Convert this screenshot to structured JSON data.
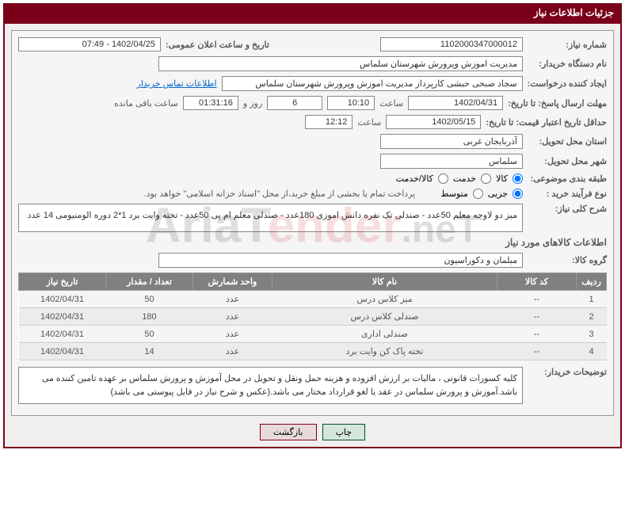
{
  "header": {
    "title": "جزئیات اطلاعات نیاز"
  },
  "labels": {
    "need_no": "شماره نیاز:",
    "announce_dt": "تاریخ و ساعت اعلان عمومی:",
    "buyer_org": "نام دستگاه خریدار:",
    "requester": "ایجاد کننده درخواست:",
    "contact_link": "اطلاعات تماس خریدار",
    "reply_deadline": "مهلت ارسال پاسخ: تا تاریخ:",
    "hour": "ساعت",
    "days_and": "روز و",
    "remaining": "ساعت باقی مانده",
    "price_valid": "حداقل تاریخ اعتبار قیمت: تا تاریخ:",
    "delivery_province": "استان محل تحویل:",
    "delivery_city": "شهر محل تحویل:",
    "category": "طبقه بندی موضوعی:",
    "purchase_type": "نوع فرآیند خرید :",
    "cat_goods": "کالا",
    "cat_service": "خدمت",
    "cat_both": "کالا/خدمت",
    "pt_minor": "جزیی",
    "pt_medium": "متوسط",
    "payment_note": "پرداخت تمام یا بخشی از مبلغ خرید،از محل \"اسناد خزانه اسلامی\" خواهد بود.",
    "summary": "شرح کلی نیاز:",
    "goods_info": "اطلاعات کالاهای مورد نیاز",
    "goods_group": "گروه کالا:",
    "buyer_desc": "توضیحات خریدار:"
  },
  "values": {
    "need_no": "1102000347000012",
    "announce_dt": "1402/04/25 - 07:49",
    "buyer_org": "مدیریت اموزش وپرورش شهرستان سلماس",
    "requester": "سجاد صبحی حبشی کارپرداز مدیریت اموزش وپرورش شهرستان سلماس",
    "reply_date": "1402/04/31",
    "reply_time": "10:10",
    "remaining_days": "6",
    "remaining_time": "01:31:16",
    "price_date": "1402/05/15",
    "price_time": "12:12",
    "province": "آذربایجان غربی",
    "city": "سلماس",
    "summary": "میز دو لاوچه معلم 50عدد - صندلی تک نفره دانش اموزی 180عدد - صندلی معلم ام پی 50عدد - تخته وایت برد 1*2 دوره الومنیومی  14 عدد",
    "goods_group": "مبلمان و دکوراسیون",
    "buyer_desc": "کلیه کسورات قانونی ، مالیات بر ارزش افزوده و هزینه حمل ونقل و تحویل در محل آموزش و پرورش سلماس بر عهده تامین کننده می باشد.آموزش و پرورش سلماس در عقد یا لغو قرارداد مختار می باشد.(عکس و شرح نیاز در فایل پیوستی می باشد)"
  },
  "table": {
    "headers": {
      "row": "ردیف",
      "code": "کد کالا",
      "name": "نام کالا",
      "unit": "واحد شمارش",
      "qty": "تعداد / مقدار",
      "date": "تاریخ نیاز"
    },
    "rows": [
      {
        "row": "1",
        "code": "--",
        "name": "میز کلاس درس",
        "unit": "عدد",
        "qty": "50",
        "date": "1402/04/31"
      },
      {
        "row": "2",
        "code": "--",
        "name": "صندلی کلاس درس",
        "unit": "عدد",
        "qty": "180",
        "date": "1402/04/31"
      },
      {
        "row": "3",
        "code": "--",
        "name": "صندلی اداری",
        "unit": "عدد",
        "qty": "50",
        "date": "1402/04/31"
      },
      {
        "row": "4",
        "code": "--",
        "name": "تخته پاک کن وایت برد",
        "unit": "عدد",
        "qty": "14",
        "date": "1402/04/31"
      }
    ]
  },
  "buttons": {
    "print": "چاپ",
    "back": "بازگشت"
  },
  "watermark": {
    "p1": "AriaT",
    "p2": "ender",
    "p3": ".neT"
  }
}
